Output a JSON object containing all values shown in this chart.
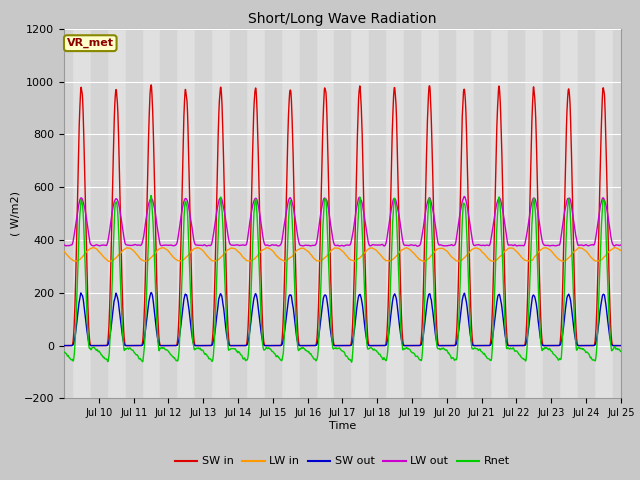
{
  "title": "Short/Long Wave Radiation",
  "xlabel": "Time",
  "ylabel": "( W/m2)",
  "ylim": [
    -200,
    1200
  ],
  "yticks": [
    -200,
    0,
    200,
    400,
    600,
    800,
    1000,
    1200
  ],
  "label_box": "VR_met",
  "series": {
    "SW_in": {
      "label": "SW in",
      "color": "#dd0000"
    },
    "LW_in": {
      "label": "LW in",
      "color": "#ff9900"
    },
    "SW_out": {
      "label": "SW out",
      "color": "#0000cc"
    },
    "LW_out": {
      "label": "LW out",
      "color": "#cc00cc"
    },
    "Rnet": {
      "label": "Rnet",
      "color": "#00cc00"
    }
  },
  "fig_bg": "#c8c8c8",
  "plot_bg": "#e0e0e0",
  "n_days": 16,
  "pts_per_day": 144,
  "start_day": 9
}
